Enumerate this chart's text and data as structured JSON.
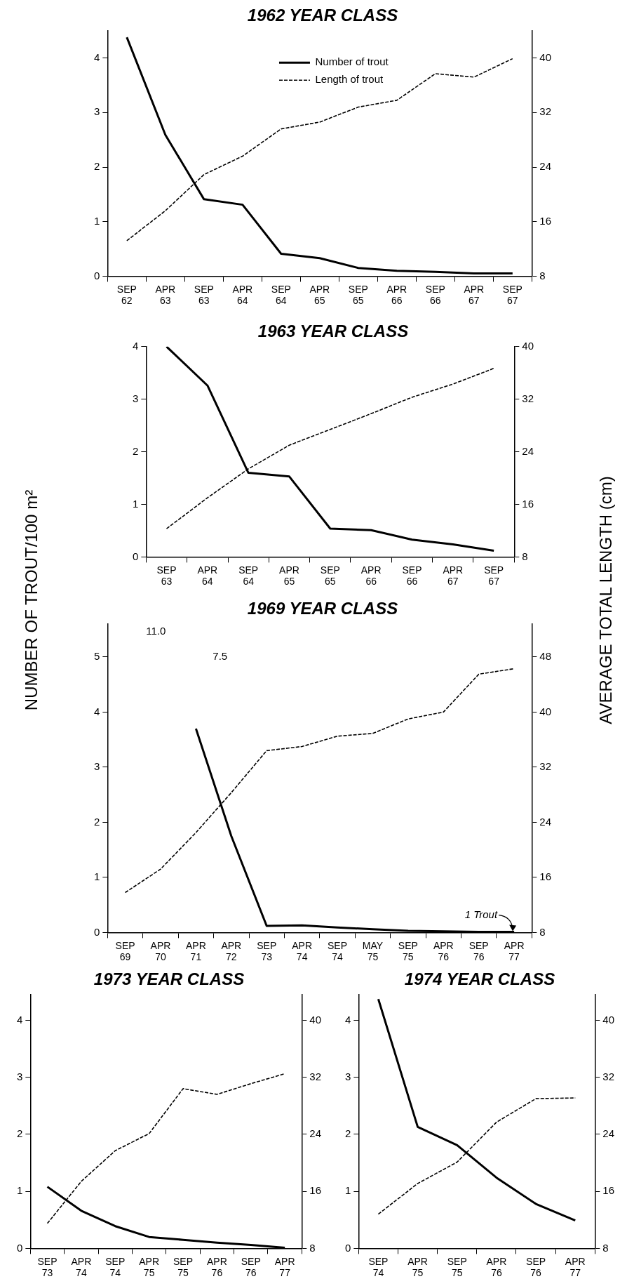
{
  "chart_data": [
    {
      "type": "line",
      "title": "1962 YEAR CLASS",
      "categories": [
        "SEP 62",
        "APR 63",
        "SEP 63",
        "APR 64",
        "SEP 64",
        "APR 65",
        "SEP 65",
        "APR 66",
        "SEP 66",
        "APR 67",
        "SEP 67"
      ],
      "series": [
        {
          "name": "Number of trout",
          "color": "#000000",
          "line_style": "solid",
          "values": [
            4.38,
            2.59,
            1.41,
            1.31,
            0.41,
            0.33,
            0.15,
            0.1,
            0.08,
            0.05,
            0.05
          ]
        },
        {
          "name": "Length of trout",
          "color": "#000000",
          "line_style": "dashed",
          "axis": "y2",
          "values": [
            13.2,
            17.6,
            22.9,
            25.6,
            29.6,
            30.6,
            32.8,
            33.8,
            37.7,
            37.2,
            39.9
          ]
        }
      ],
      "ylim": [
        0,
        4.5
      ],
      "yticks": [
        0,
        1,
        2,
        3,
        4
      ],
      "y2lim": [
        8,
        44
      ],
      "y2ticks": [
        8,
        16,
        24,
        32,
        40
      ],
      "grid": false,
      "legend": "top"
    },
    {
      "type": "line",
      "title": "1963 YEAR CLASS",
      "categories": [
        "SEP 63",
        "APR 64",
        "SEP 64",
        "APR 65",
        "SEP 65",
        "APR 66",
        "SEP 66",
        "APR 67",
        "SEP 67"
      ],
      "series": [
        {
          "color": "#000000",
          "line_style": "solid",
          "values": [
            4.0,
            3.26,
            1.6,
            1.53,
            0.54,
            0.51,
            0.33,
            0.24,
            0.12
          ]
        },
        {
          "color": "#000000",
          "line_style": "dashed",
          "axis": "y2",
          "values": [
            12.3,
            17.0,
            21.4,
            25.0,
            27.4,
            29.8,
            32.3,
            34.3,
            36.7
          ]
        }
      ],
      "ylim": [
        0,
        4
      ],
      "yticks": [
        0,
        1,
        2,
        3,
        4
      ],
      "y2lim": [
        8,
        40
      ],
      "y2ticks": [
        8,
        16,
        24,
        32,
        40
      ],
      "grid": false,
      "legend": false
    },
    {
      "type": "line",
      "title": "1969 YEAR CLASS",
      "ylabel": "NUMBER OF TROUT/100 m²",
      "y2label": "AVERAGE TOTAL LENGTH (cm)",
      "categories": [
        "SEP 69",
        "APR 70",
        "APR 71",
        "APR 72",
        "SEP 73",
        "APR 74",
        "SEP 74",
        "MAY 75",
        "SEP 75",
        "APR 76",
        "SEP 76",
        "APR 77"
      ],
      "series": [
        {
          "color": "#000000",
          "line_style": "solid",
          "values": [
            null,
            null,
            3.7,
            1.75,
            0.12,
            0.13,
            0.09,
            0.06,
            0.03,
            0.02,
            0.01,
            0.01
          ]
        },
        {
          "color": "#000000",
          "line_style": "dashed",
          "axis": "y2",
          "values": [
            13.8,
            17.2,
            22.5,
            28.3,
            34.4,
            35.0,
            36.5,
            36.9,
            39.0,
            40.0,
            45.5,
            46.3
          ]
        }
      ],
      "annotations": [
        "11.0",
        "7.5",
        {
          "text": "1 Trout",
          "x": "APR 77",
          "y": 0.01
        }
      ],
      "ylim": [
        0,
        5.6
      ],
      "yticks": [
        0,
        1,
        2,
        3,
        4,
        5
      ],
      "y2lim": [
        8,
        52.8
      ],
      "y2ticks": [
        8,
        16,
        24,
        32,
        40,
        48
      ],
      "grid": false,
      "legend": false
    },
    {
      "type": "line",
      "title": "1973 YEAR CLASS",
      "categories": [
        "SEP 73",
        "APR 74",
        "SEP 74",
        "APR 75",
        "SEP 75",
        "APR 76",
        "SEP 76",
        "APR 77"
      ],
      "series": [
        {
          "color": "#000000",
          "line_style": "solid",
          "values": [
            1.08,
            0.66,
            0.39,
            0.2,
            0.15,
            0.1,
            0.06,
            0.01
          ]
        },
        {
          "color": "#000000",
          "line_style": "dashed",
          "axis": "y2",
          "values": [
            11.5,
            17.4,
            21.7,
            24.1,
            30.4,
            29.6,
            31.1,
            32.5
          ]
        }
      ],
      "ylim": [
        0,
        4.45
      ],
      "yticks": [
        0,
        1,
        2,
        3,
        4
      ],
      "y2lim": [
        8,
        43.6
      ],
      "y2ticks": [
        8,
        16,
        24,
        32,
        40
      ],
      "grid": false,
      "legend": false
    },
    {
      "type": "line",
      "title": "1974 YEAR CLASS",
      "categories": [
        "SEP 74",
        "APR 75",
        "SEP 75",
        "APR 76",
        "SEP 76",
        "APR 77"
      ],
      "series": [
        {
          "color": "#000000",
          "line_style": "solid",
          "values": [
            4.37,
            2.13,
            1.81,
            1.24,
            0.78,
            0.49
          ]
        },
        {
          "color": "#000000",
          "line_style": "dashed",
          "axis": "y2",
          "values": [
            12.8,
            17.1,
            20.1,
            25.7,
            29.0,
            29.1
          ]
        }
      ],
      "ylim": [
        0,
        4.45
      ],
      "yticks": [
        0,
        1,
        2,
        3,
        4
      ],
      "y2lim": [
        8,
        43.6
      ],
      "y2ticks": [
        8,
        16,
        24,
        32,
        40
      ],
      "grid": false,
      "legend": false
    }
  ]
}
